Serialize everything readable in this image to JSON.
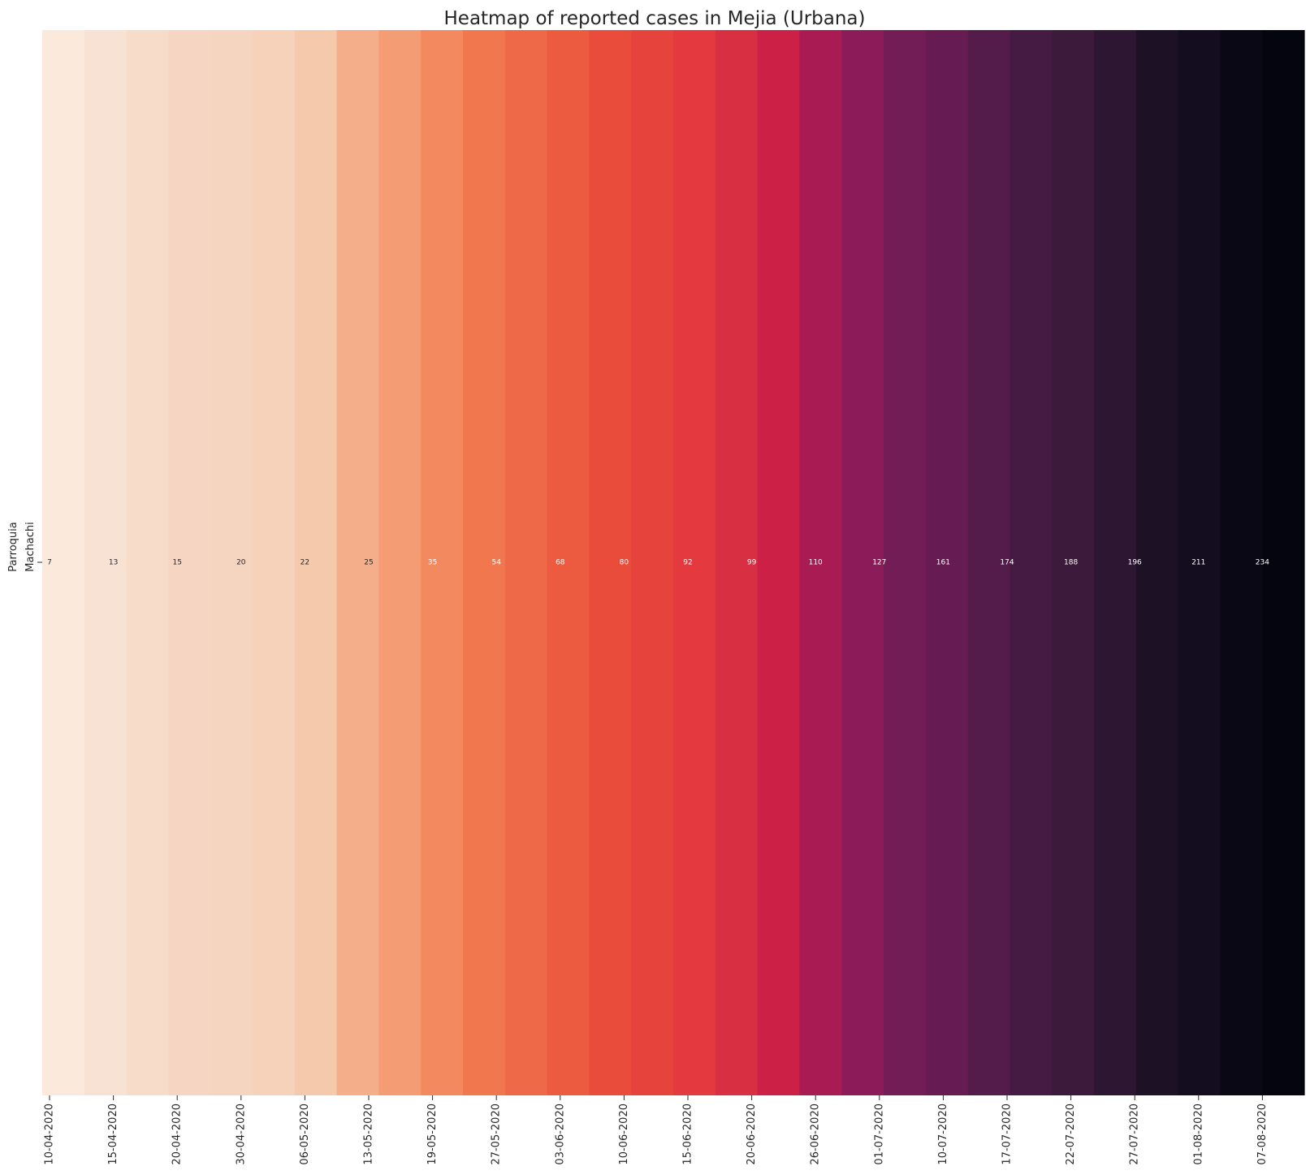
{
  "chart_data": {
    "type": "heatmap",
    "title": "Heatmap of reported cases in Mejia (Urbana)",
    "ylabel": "Parroquia",
    "rows": [
      "Machachi"
    ],
    "x_tick_labels": [
      "10-04-2020",
      "15-04-2020",
      "20-04-2020",
      "30-04-2020",
      "06-05-2020",
      "13-05-2020",
      "19-05-2020",
      "27-05-2020",
      "03-06-2020",
      "10-06-2020",
      "15-06-2020",
      "20-06-2020",
      "26-06-2020",
      "01-07-2020",
      "10-07-2020",
      "17-07-2020",
      "22-07-2020",
      "27-07-2020",
      "01-08-2020",
      "07-08-2020"
    ],
    "labeled_values": [
      7,
      13,
      15,
      20,
      22,
      25,
      35,
      54,
      68,
      80,
      92,
      99,
      110,
      127,
      161,
      174,
      188,
      196,
      211,
      234
    ],
    "cell_colors": [
      "#fbe9dc",
      "#f8e2d3",
      "#f7dcca",
      "#f6d6c2",
      "#f6d5c0",
      "#f6d2bb",
      "#f5c9ab",
      "#f4ae89",
      "#f49c73",
      "#f3895f",
      "#f1774f",
      "#ee6948",
      "#ec5a3f",
      "#ea4c3c",
      "#e6433d",
      "#e43a3f",
      "#d92f42",
      "#cc2046",
      "#a81c53",
      "#8c1c59",
      "#731d57",
      "#661c53",
      "#531c4b",
      "#461b43",
      "#3c1a3b",
      "#2c1632",
      "#1d1126",
      "#130d1f",
      "#0b0816",
      "#04050f"
    ],
    "cell_widths": [
      2.5,
      2.5,
      2.5,
      2.5,
      2.5,
      2.5,
      2.5,
      2.5,
      2.5,
      2.5,
      2.5,
      2.5,
      2.5,
      2.5,
      2.5,
      2.5,
      2.5,
      2.5,
      2.5,
      2.5,
      2.5,
      2.5,
      2.5,
      2.5,
      2.5,
      2.5,
      2.5,
      2.5,
      2.5,
      2.5
    ],
    "colorbar": false,
    "grid": false
  }
}
